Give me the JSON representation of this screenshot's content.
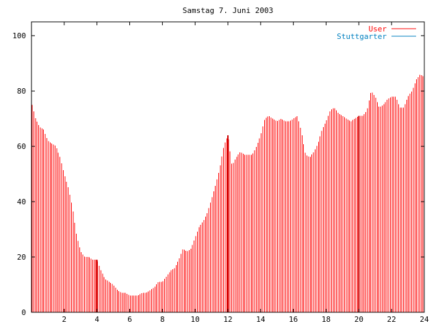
{
  "chart_data": {
    "type": "bar",
    "title": "Samstag 7. Juni 2003",
    "xlabel": "",
    "ylabel": "",
    "xlim": [
      0,
      24
    ],
    "ylim": [
      0,
      105
    ],
    "xticks": [
      2,
      4,
      6,
      8,
      10,
      12,
      14,
      16,
      18,
      20,
      22,
      24
    ],
    "yticks": [
      0,
      20,
      40,
      60,
      80,
      100
    ],
    "legend_position": "top-right",
    "series": [
      {
        "name": "User",
        "color": "#ff0000",
        "points": [
          [
            0.0,
            76
          ],
          [
            0.25,
            70
          ],
          [
            0.5,
            67
          ],
          [
            0.75,
            66
          ],
          [
            1.0,
            62
          ],
          [
            1.25,
            61
          ],
          [
            1.5,
            60
          ],
          [
            1.75,
            56
          ],
          [
            2.0,
            50
          ],
          [
            2.25,
            45
          ],
          [
            2.5,
            38
          ],
          [
            2.75,
            28
          ],
          [
            3.0,
            22
          ],
          [
            3.25,
            20
          ],
          [
            3.5,
            20
          ],
          [
            3.75,
            19
          ],
          [
            4.0,
            19
          ],
          [
            4.25,
            15
          ],
          [
            4.5,
            12
          ],
          [
            4.75,
            11
          ],
          [
            5.0,
            10
          ],
          [
            5.25,
            8
          ],
          [
            5.5,
            7
          ],
          [
            5.75,
            7
          ],
          [
            6.0,
            6
          ],
          [
            6.25,
            6
          ],
          [
            6.5,
            6
          ],
          [
            6.75,
            7
          ],
          [
            7.0,
            7
          ],
          [
            7.25,
            8
          ],
          [
            7.5,
            9
          ],
          [
            7.75,
            11
          ],
          [
            8.0,
            11
          ],
          [
            8.25,
            13
          ],
          [
            8.5,
            15
          ],
          [
            8.75,
            16
          ],
          [
            9.0,
            19
          ],
          [
            9.25,
            23
          ],
          [
            9.5,
            22
          ],
          [
            9.75,
            23
          ],
          [
            10.0,
            27
          ],
          [
            10.25,
            31
          ],
          [
            10.5,
            33
          ],
          [
            10.75,
            36
          ],
          [
            11.0,
            41
          ],
          [
            11.25,
            46
          ],
          [
            11.5,
            52
          ],
          [
            11.75,
            60
          ],
          [
            12.0,
            64
          ],
          [
            12.25,
            53
          ],
          [
            12.5,
            56
          ],
          [
            12.75,
            58
          ],
          [
            13.0,
            57
          ],
          [
            13.25,
            57
          ],
          [
            13.5,
            57
          ],
          [
            13.75,
            60
          ],
          [
            14.0,
            64
          ],
          [
            14.25,
            70
          ],
          [
            14.5,
            71
          ],
          [
            14.75,
            70
          ],
          [
            15.0,
            69
          ],
          [
            15.25,
            70
          ],
          [
            15.5,
            69
          ],
          [
            15.75,
            69
          ],
          [
            16.0,
            70
          ],
          [
            16.25,
            71
          ],
          [
            16.5,
            65
          ],
          [
            16.75,
            57
          ],
          [
            17.0,
            56
          ],
          [
            17.25,
            58
          ],
          [
            17.5,
            61
          ],
          [
            17.75,
            66
          ],
          [
            18.0,
            69
          ],
          [
            18.25,
            73
          ],
          [
            18.5,
            74
          ],
          [
            18.75,
            72
          ],
          [
            19.0,
            71
          ],
          [
            19.25,
            70
          ],
          [
            19.5,
            69
          ],
          [
            19.75,
            70
          ],
          [
            20.0,
            71
          ],
          [
            20.25,
            71
          ],
          [
            20.5,
            73
          ],
          [
            20.75,
            80
          ],
          [
            21.0,
            78
          ],
          [
            21.25,
            74
          ],
          [
            21.5,
            75
          ],
          [
            21.75,
            77
          ],
          [
            22.0,
            78
          ],
          [
            22.25,
            78
          ],
          [
            22.5,
            74
          ],
          [
            22.75,
            74
          ],
          [
            23.0,
            78
          ],
          [
            23.25,
            80
          ],
          [
            23.5,
            84
          ],
          [
            23.75,
            86
          ],
          [
            24.0,
            85
          ]
        ]
      },
      {
        "name": "Stuttgarter",
        "color": "#0080c0",
        "points": []
      }
    ]
  }
}
